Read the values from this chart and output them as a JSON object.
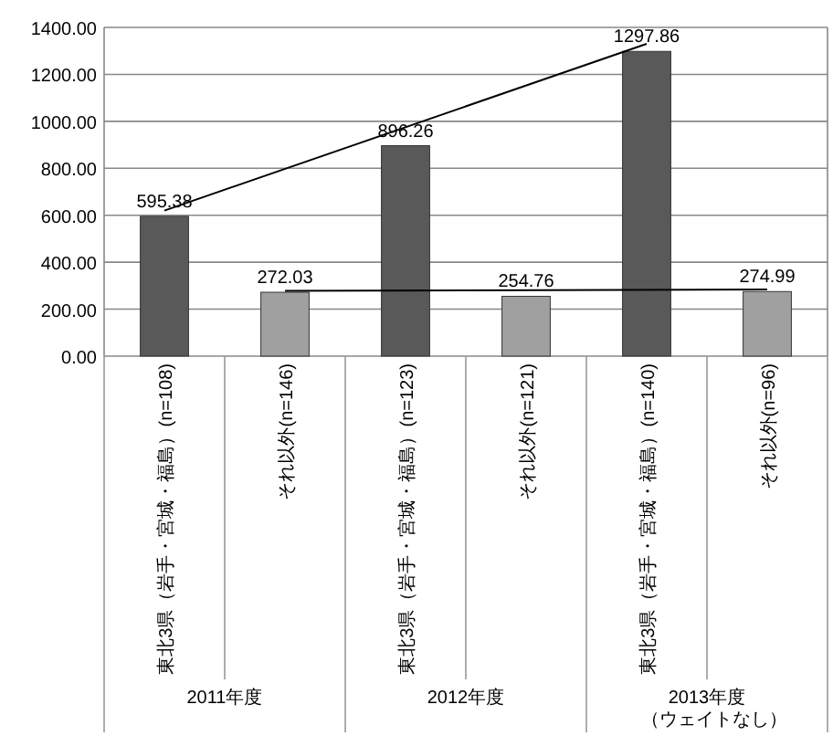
{
  "chart_data": {
    "type": "bar",
    "categories": [
      "東北3県（岩手・宮城・福島）(n=108)",
      "それ以外(n=146)",
      "東北3県（岩手・宮城・福島）(n=123)",
      "それ以外(n=121)",
      "東北3県（岩手・宮城・福島）(n=140)",
      "それ以外(n=96)"
    ],
    "series": [
      {
        "values": [
          595.38,
          272.03,
          896.26,
          254.76,
          1297.86,
          274.99
        ],
        "value_labels": [
          "595.38",
          "272.03",
          "896.26",
          "254.76",
          "1297.86",
          "274.99"
        ],
        "colors": [
          "#595959",
          "#a0a0a0",
          "#595959",
          "#a0a0a0",
          "#595959",
          "#a0a0a0"
        ]
      },
      {
        "type": "line",
        "x": [
          "東北3県（岩手・宮城・福島）(n=108)",
          "東北3県（岩手・宮城・福島）(n=140)"
        ],
        "values": [
          620,
          1330
        ],
        "color": "#000000"
      },
      {
        "type": "line",
        "x": [
          "それ以外(n=146)",
          "それ以外(n=96)"
        ],
        "values": [
          278,
          284
        ],
        "color": "#000000"
      }
    ],
    "ylim": [
      0,
      1400
    ],
    "yticks": [
      {
        "value": 0,
        "label": "0.00"
      },
      {
        "value": 200,
        "label": "200.00"
      },
      {
        "value": 400,
        "label": "400.00"
      },
      {
        "value": 600,
        "label": "600.00"
      },
      {
        "value": 800,
        "label": "800.00"
      },
      {
        "value": 1000,
        "label": "1000.00"
      },
      {
        "value": 1200,
        "label": "1200.00"
      },
      {
        "value": 1400,
        "label": "1400.00"
      }
    ],
    "grid": "y",
    "annotations": [
      "2011年度",
      "2012年度",
      "2013年度",
      "（ウェイトなし）"
    ]
  }
}
